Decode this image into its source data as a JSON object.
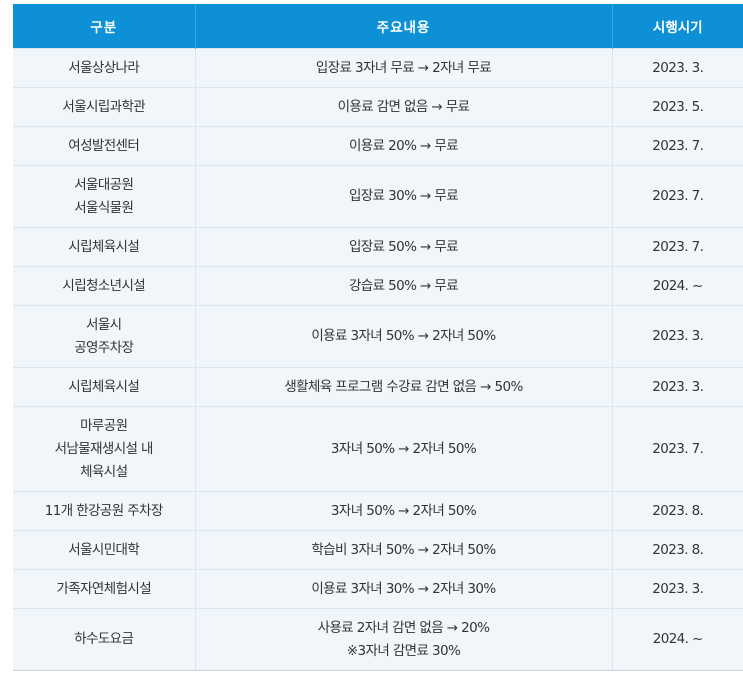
{
  "header": {
    "col1": "구분",
    "col2": "주요내용",
    "col3": "시행시기"
  },
  "rows": [
    {
      "category": [
        "서울상상나라"
      ],
      "content": [
        "입장료 3자녀 무료 → 2자녀 무료"
      ],
      "date": "2023. 3."
    },
    {
      "category": [
        "서울시립과학관"
      ],
      "content": [
        "이용료 감면 없음 → 무료"
      ],
      "date": "2023. 5."
    },
    {
      "category": [
        "여성발전센터"
      ],
      "content": [
        "이용료 20% → 무료"
      ],
      "date": "2023. 7."
    },
    {
      "category": [
        "서울대공원",
        "서울식물원"
      ],
      "content": [
        "입장료 30% → 무료"
      ],
      "date": "2023. 7."
    },
    {
      "category": [
        "시립체육시설"
      ],
      "content": [
        "입장료 50% → 무료"
      ],
      "date": "2023. 7."
    },
    {
      "category": [
        "시립청소년시설"
      ],
      "content": [
        "강습료 50% → 무료"
      ],
      "date": "2024. ~"
    },
    {
      "category": [
        "서울시",
        "공영주차장"
      ],
      "content": [
        "이용료 3자녀 50% → 2자녀 50%"
      ],
      "date": "2023. 3."
    },
    {
      "category": [
        "시립체육시설"
      ],
      "content": [
        "생활체육 프로그램 수강료 감면 없음 → 50%"
      ],
      "date": "2023. 3."
    },
    {
      "category": [
        "마루공원",
        "서남물재생시설 내",
        "체육시설"
      ],
      "content": [
        "3자녀 50% → 2자녀 50%"
      ],
      "date": "2023. 7."
    },
    {
      "category": [
        "11개 한강공원 주차장"
      ],
      "content": [
        "3자녀 50% → 2자녀 50%"
      ],
      "date": "2023. 8."
    },
    {
      "category": [
        "서울시민대학"
      ],
      "content": [
        "학습비 3자녀 50% → 2자녀 50%"
      ],
      "date": "2023. 8."
    },
    {
      "category": [
        "가족자연체험시설"
      ],
      "content": [
        "이용료 3자녀 30% → 2자녀 30%"
      ],
      "date": "2023. 3."
    },
    {
      "category": [
        "하수도요금"
      ],
      "content": [
        "사용료 2자녀 감면 없음 → 20%",
        "※3자녀 감면료 30%"
      ],
      "date": "2024. ~"
    }
  ]
}
